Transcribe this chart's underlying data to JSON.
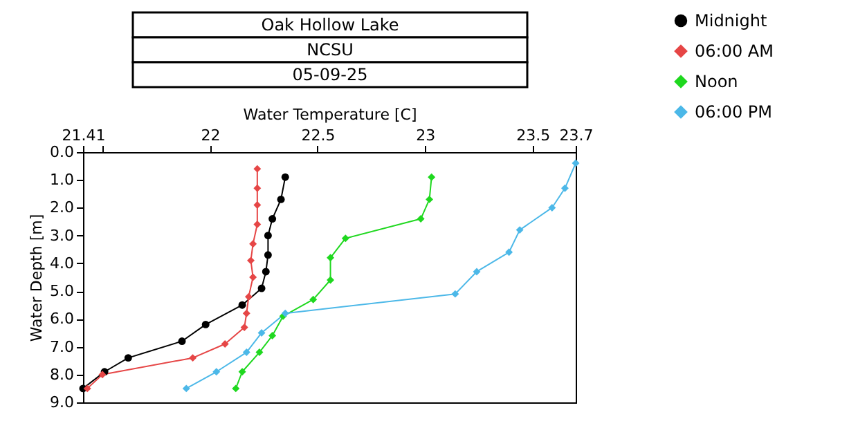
{
  "chart_data": {
    "type": "line",
    "title": "Oak Hollow Lake",
    "subtitle": "NCSU",
    "annotations": [
      "05-09-25"
    ],
    "xlabel": "Water Temperature [C]",
    "ylabel": "Water Depth [m]",
    "xlim": [
      21.41,
      23.7
    ],
    "xticks": [
      21.41,
      {
        "value": 21.5,
        "label": null
      },
      22,
      22.5,
      23,
      23.5,
      23.7
    ],
    "ylim": [
      9,
      0
    ],
    "yticks": [
      {
        "value": 0,
        "label": "0.0"
      },
      {
        "value": 1,
        "label": "1.0"
      },
      {
        "value": 2,
        "label": "2.0"
      },
      {
        "value": 3,
        "label": "3.0"
      },
      {
        "value": 4,
        "label": "4.0"
      },
      {
        "value": 5,
        "label": "5.0"
      },
      {
        "value": 6,
        "label": "6.0"
      },
      {
        "value": 7,
        "label": "7.0"
      },
      {
        "value": 8,
        "label": "8.0"
      },
      {
        "value": 9,
        "label": "9.0"
      }
    ],
    "grid": false,
    "legend": "top right",
    "series": [
      {
        "name": "Midnight",
        "color": "#000000",
        "marker": "circle",
        "x": [
          22.35,
          22.33,
          22.29,
          22.27,
          22.27,
          22.26,
          22.24,
          22.15,
          21.98,
          21.87,
          21.62,
          21.51,
          21.41
        ],
        "values": [
          0.9,
          1.7,
          2.4,
          3.0,
          3.7,
          4.3,
          4.9,
          5.5,
          6.2,
          6.8,
          7.4,
          7.9,
          8.5
        ]
      },
      {
        "name": "06:00 AM",
        "color": "#e64646",
        "marker": "diamond",
        "x": [
          22.22,
          22.22,
          22.22,
          22.22,
          22.2,
          22.19,
          22.2,
          22.18,
          22.17,
          22.16,
          22.07,
          21.92,
          21.5,
          21.43
        ],
        "values": [
          0.6,
          1.3,
          1.9,
          2.6,
          3.3,
          3.9,
          4.5,
          5.2,
          5.8,
          6.3,
          6.9,
          7.4,
          8.0,
          8.5
        ]
      },
      {
        "name": "Noon",
        "color": "#1fd81f",
        "marker": "diamond",
        "x": [
          23.03,
          23.02,
          22.98,
          22.63,
          22.56,
          22.56,
          22.48,
          22.34,
          22.29,
          22.23,
          22.15,
          22.12
        ],
        "values": [
          0.9,
          1.7,
          2.4,
          3.1,
          3.8,
          4.6,
          5.3,
          5.9,
          6.6,
          7.2,
          7.9,
          8.5
        ]
      },
      {
        "name": "06:00 PM",
        "color": "#4cb8e8",
        "marker": "diamond",
        "x": [
          23.7,
          23.65,
          23.59,
          23.44,
          23.39,
          23.24,
          23.14,
          22.35,
          22.24,
          22.17,
          22.03,
          21.89
        ],
        "values": [
          0.4,
          1.3,
          2.0,
          2.8,
          3.6,
          4.3,
          5.1,
          5.8,
          6.5,
          7.2,
          7.9,
          8.5
        ]
      }
    ]
  }
}
